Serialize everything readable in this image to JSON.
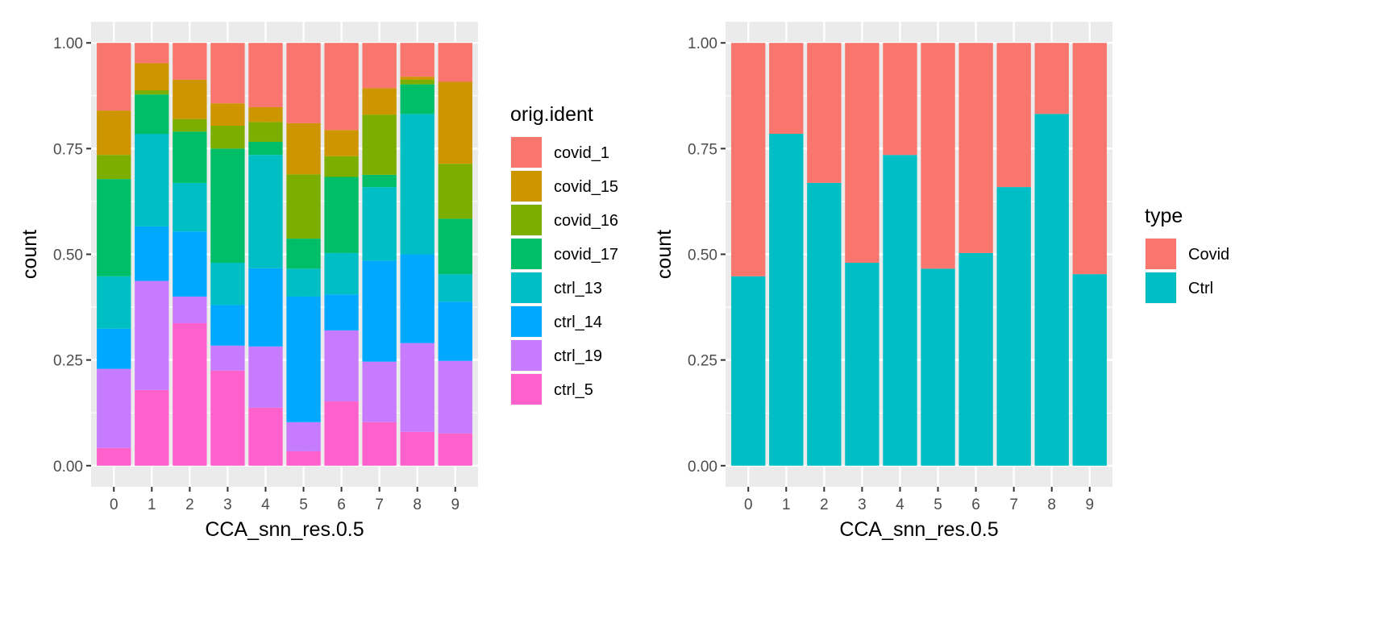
{
  "chart_data": [
    {
      "type": "bar",
      "stacked": "fill",
      "title": "",
      "xlabel": "CCA_snn_res.0.5",
      "ylabel": "count",
      "categories": [
        "0",
        "1",
        "2",
        "3",
        "4",
        "5",
        "6",
        "7",
        "8",
        "9"
      ],
      "ylim": [
        0,
        1
      ],
      "yticks": [
        "0.00",
        "0.25",
        "0.50",
        "0.75",
        "1.00"
      ],
      "ytick_values": [
        0,
        0.25,
        0.5,
        0.75,
        1
      ],
      "grid": true,
      "legend": {
        "title": "orig.ident",
        "position": "right"
      },
      "series": [
        {
          "name": "covid_1",
          "color": "#F8766D",
          "values": [
            0.16,
            0.048,
            0.087,
            0.143,
            0.152,
            0.19,
            0.206,
            0.107,
            0.08,
            0.092
          ]
        },
        {
          "name": "covid_15",
          "color": "#CD9600",
          "values": [
            0.105,
            0.064,
            0.093,
            0.053,
            0.035,
            0.121,
            0.062,
            0.063,
            0.007,
            0.194
          ]
        },
        {
          "name": "covid_16",
          "color": "#7CAE00",
          "values": [
            0.057,
            0.01,
            0.03,
            0.054,
            0.047,
            0.152,
            0.049,
            0.142,
            0.011,
            0.13
          ]
        },
        {
          "name": "covid_17",
          "color": "#00BE67",
          "values": [
            0.23,
            0.093,
            0.121,
            0.27,
            0.031,
            0.071,
            0.18,
            0.029,
            0.07,
            0.131
          ]
        },
        {
          "name": "ctrl_13",
          "color": "#00BFC4",
          "values": [
            0.124,
            0.219,
            0.115,
            0.1,
            0.268,
            0.066,
            0.098,
            0.174,
            0.332,
            0.065
          ]
        },
        {
          "name": "ctrl_14",
          "color": "#00A9FF",
          "values": [
            0.095,
            0.129,
            0.154,
            0.096,
            0.185,
            0.297,
            0.085,
            0.239,
            0.21,
            0.14
          ]
        },
        {
          "name": "ctrl_19",
          "color": "#C77CFF",
          "values": [
            0.187,
            0.258,
            0.063,
            0.059,
            0.145,
            0.069,
            0.168,
            0.143,
            0.21,
            0.172
          ]
        },
        {
          "name": "ctrl_5",
          "color": "#FF61CC",
          "values": [
            0.042,
            0.179,
            0.337,
            0.225,
            0.137,
            0.034,
            0.152,
            0.103,
            0.08,
            0.076
          ]
        }
      ]
    },
    {
      "type": "bar",
      "stacked": "fill",
      "title": "",
      "xlabel": "CCA_snn_res.0.5",
      "ylabel": "count",
      "categories": [
        "0",
        "1",
        "2",
        "3",
        "4",
        "5",
        "6",
        "7",
        "8",
        "9"
      ],
      "ylim": [
        0,
        1
      ],
      "yticks": [
        "0.00",
        "0.25",
        "0.50",
        "0.75",
        "1.00"
      ],
      "ytick_values": [
        0,
        0.25,
        0.5,
        0.75,
        1
      ],
      "grid": true,
      "legend": {
        "title": "type",
        "position": "right"
      },
      "series": [
        {
          "name": "Covid",
          "color": "#F8766D",
          "values": [
            0.552,
            0.215,
            0.331,
            0.52,
            0.265,
            0.534,
            0.497,
            0.341,
            0.168,
            0.547
          ]
        },
        {
          "name": "Ctrl",
          "color": "#00BFC4",
          "values": [
            0.448,
            0.785,
            0.669,
            0.48,
            0.735,
            0.466,
            0.503,
            0.659,
            0.832,
            0.453
          ]
        }
      ]
    }
  ]
}
